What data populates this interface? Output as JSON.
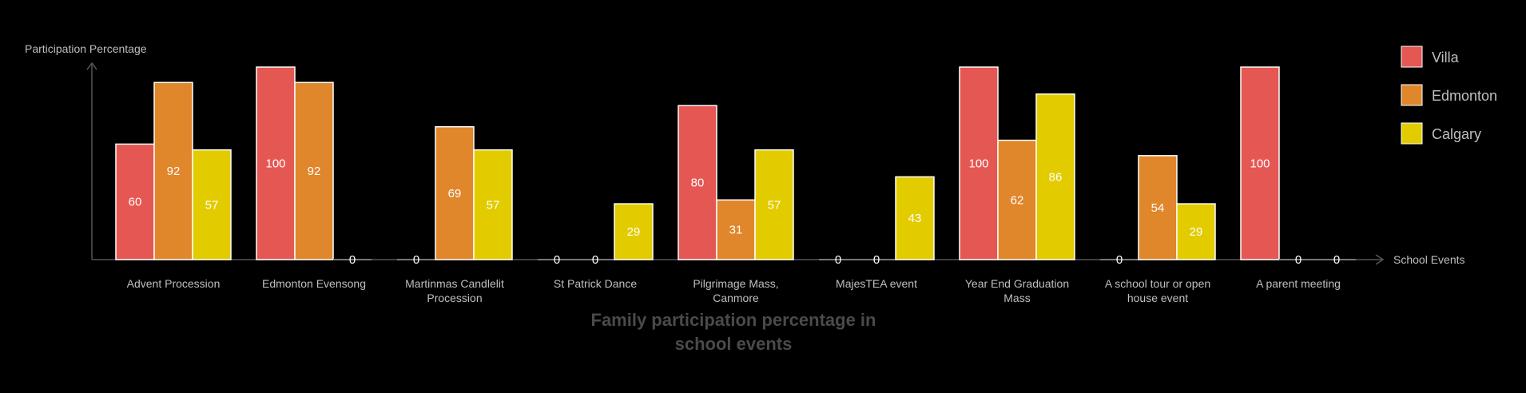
{
  "chart_data": {
    "type": "bar",
    "title": "Family participation percentage in school events",
    "ylabel": "Participation Percentage",
    "xlabel": "School Events",
    "ylim": [
      0,
      100
    ],
    "grid": false,
    "legend_position": "top-right",
    "categories": [
      "Advent Procession",
      "Edmonton Evensong",
      "Martinmas Candlelit Procession",
      "St Patrick Dance",
      "Pilgrimage Mass, Canmore",
      "MajesTEA event",
      "Year End Graduation Mass",
      "A school tour or open house event",
      "A parent meeting"
    ],
    "series": [
      {
        "name": "Villa",
        "color": "#e55753",
        "values": [
          60,
          100,
          0,
          0,
          80,
          0,
          100,
          0,
          100
        ]
      },
      {
        "name": "Edmonton",
        "color": "#e0862b",
        "values": [
          92,
          92,
          69,
          0,
          31,
          0,
          62,
          54,
          0
        ]
      },
      {
        "name": "Calgary",
        "color": "#e2cc00",
        "values": [
          57,
          0,
          57,
          29,
          57,
          43,
          86,
          29,
          0
        ]
      }
    ]
  }
}
